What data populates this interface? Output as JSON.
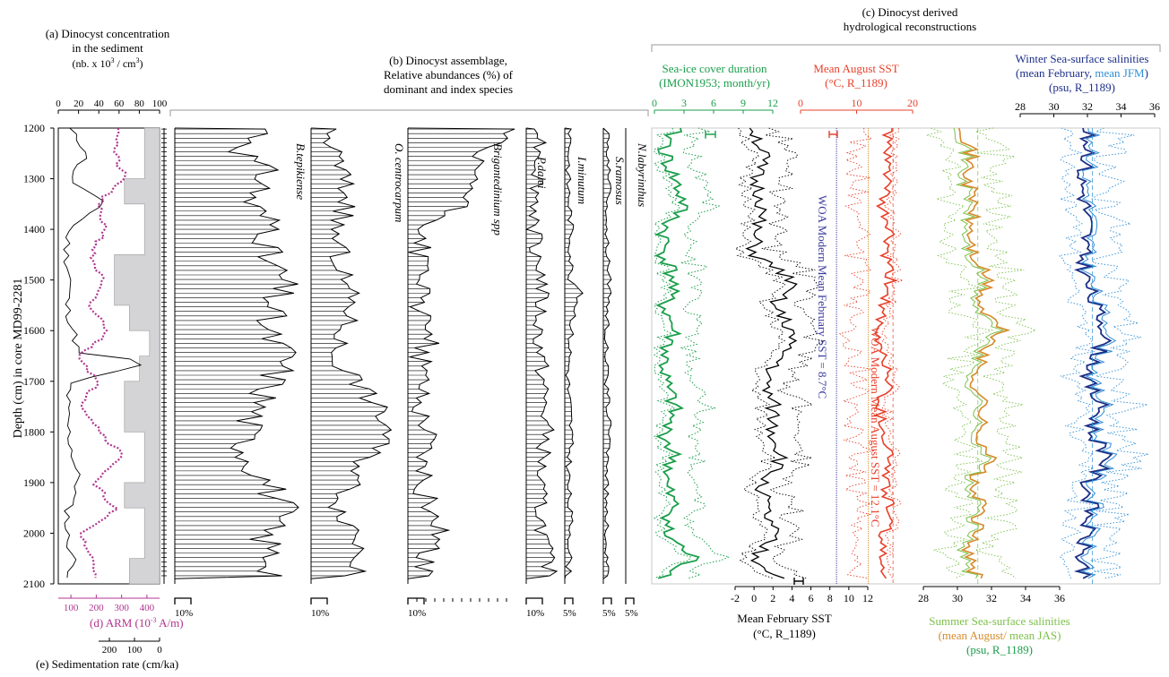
{
  "panels": {
    "a_title": [
      "(a) Dinocyst concentration",
      "in the sediment",
      "(nb. x 10",
      "3",
      " / cm",
      "3",
      ")"
    ],
    "b_title": [
      "(b) Dinocyst assemblage,",
      "Relative abundances (%) of",
      "dominant and index species"
    ],
    "c_title": [
      "(c) Dinocyst derived",
      "hydrological reconstructions"
    ],
    "d_label": "(d) ARM (10",
    "d_label_sup": "-3",
    "d_label_end": " A/m)",
    "e_label": "(e) Sedimentation rate (cm/ka)",
    "y_label": "Depth (cm) in core MD99-2281",
    "seaice_title": [
      "Sea-ice cover duration",
      "(IMON1953; month/yr)"
    ],
    "aug_title": [
      "Mean August SST",
      "(°C, R_1189)"
    ],
    "winter_title": [
      "Winter Sea-surface salinities",
      "(mean February, ",
      "mean JFM",
      ")",
      "(psu, R_1189)"
    ],
    "feb_title": [
      "Mean February SST",
      "(°C, R_1189)"
    ],
    "summer_title": [
      "Summer Sea-surface salinities",
      "(mean August/",
      " mean JAS)",
      "(psu, R_1189)"
    ],
    "woa_feb": "WOA Modern Mean February SST = 8.7°C",
    "woa_aug": "WOA Modern Mean August SST = 12.1°C"
  },
  "colors": {
    "green": "#1b9e4b",
    "lightgreen": "#7cc04a",
    "red": "#e8402a",
    "orange": "#d68a2a",
    "darkblue": "#1c2f86",
    "lightblue": "#2f8fd6",
    "magenta": "#b0348f",
    "purple": "#3a3aa0",
    "gray": "#d4d4d6"
  },
  "species": [
    "B.tepikiense",
    "O. centrocarpum",
    "Brigantedinium spp",
    "P.dalei",
    "I.minutum",
    "S.ramosus",
    "N.labyrinthus"
  ],
  "scale_labels": [
    "10%",
    "10%",
    "10%",
    "10%",
    "5%",
    "5%",
    "5%"
  ],
  "chart_data": {
    "type": "line",
    "depth_axis": {
      "label": "Depth (cm) in core MD99-2281",
      "range": [
        1200,
        2100
      ],
      "ticks": [
        "1200",
        "1300",
        "1400",
        "1500",
        "1600",
        "1700",
        "1800",
        "1900",
        "2000",
        "2100"
      ]
    },
    "axes": {
      "concentration": {
        "ticks": [
          "0",
          "20",
          "40",
          "60",
          "80",
          "100"
        ],
        "range": [
          0,
          100
        ]
      },
      "arm": {
        "ticks": [
          "100",
          "200",
          "300",
          "400"
        ],
        "range": [
          50,
          450
        ]
      },
      "sed_rate": {
        "ticks": [
          "200",
          "100",
          "0"
        ],
        "range": [
          250,
          0
        ]
      },
      "seaice": {
        "ticks": [
          "0",
          "3",
          "6",
          "9",
          "12"
        ],
        "range": [
          0,
          12
        ]
      },
      "aug_sst": {
        "ticks": [
          "0",
          "10",
          "20"
        ],
        "range": [
          0,
          20
        ]
      },
      "feb_sst": {
        "ticks": [
          "-2",
          "0",
          "2",
          "4",
          "6",
          "8",
          "10",
          "12"
        ],
        "range": [
          -2,
          12
        ]
      },
      "summer_sss": {
        "ticks": [
          "28",
          "30",
          "32",
          "34",
          "36"
        ],
        "range": [
          28,
          36
        ]
      },
      "winter_sss": {
        "ticks": [
          "28",
          "30",
          "32",
          "34",
          "36"
        ],
        "range": [
          28,
          36
        ]
      }
    },
    "series": [
      {
        "name": "B.tepikiense",
        "depth": [
          1200,
          1250,
          1300,
          1350,
          1400,
          1450,
          1500,
          1550,
          1600,
          1650,
          1700,
          1750,
          1800,
          1850,
          1900,
          1950,
          2000,
          2050,
          2090
        ],
        "values": [
          40,
          30,
          40,
          32,
          44,
          38,
          46,
          42,
          38,
          48,
          42,
          36,
          30,
          32,
          40,
          46,
          38,
          42,
          44
        ]
      },
      {
        "name": "O. centrocarpum",
        "depth": [
          1200,
          1250,
          1300,
          1350,
          1400,
          1450,
          1500,
          1550,
          1600,
          1650,
          1700,
          1750,
          1800,
          1850,
          1900,
          1950,
          2000,
          2050,
          2090
        ],
        "values": [
          6,
          10,
          14,
          16,
          10,
          12,
          14,
          18,
          14,
          10,
          20,
          28,
          34,
          24,
          18,
          12,
          20,
          22,
          16
        ]
      },
      {
        "name": "Brigantedinium spp",
        "depth": [
          1200,
          1250,
          1300,
          1350,
          1400,
          1450,
          1500,
          1550,
          1600,
          1650,
          1700,
          1750,
          1800,
          1850,
          1900,
          1950,
          2000,
          2050,
          2090
        ],
        "values": [
          38,
          22,
          24,
          18,
          6,
          4,
          6,
          2,
          10,
          4,
          6,
          4,
          8,
          6,
          4,
          8,
          12,
          6,
          4
        ]
      },
      {
        "name": "P.dalei",
        "depth": [
          1200,
          1300,
          1400,
          1500,
          1600,
          1700,
          1800,
          1900,
          2000,
          2090
        ],
        "values": [
          4,
          3,
          2,
          4,
          3,
          4,
          5,
          3,
          4,
          6
        ]
      },
      {
        "name": "I.minutum",
        "depth": [
          1200,
          1300,
          1400,
          1500,
          1520,
          1600,
          1700,
          1800,
          1900,
          2000,
          2090
        ],
        "values": [
          2,
          1,
          2,
          2,
          5,
          2,
          1,
          2,
          1,
          2,
          1
        ]
      },
      {
        "name": "S.ramosus",
        "depth": [
          1200,
          1300,
          1400,
          1500,
          1600,
          1700,
          1800,
          1900,
          2000,
          2090
        ],
        "values": [
          1,
          2,
          1,
          2,
          1,
          1,
          2,
          1,
          1,
          1
        ]
      },
      {
        "name": "Sea-ice cover duration",
        "depth": [
          1200,
          1250,
          1300,
          1350,
          1400,
          1450,
          1500,
          1550,
          1600,
          1650,
          1700,
          1750,
          1800,
          1850,
          1900,
          1950,
          2000,
          2050,
          2090
        ],
        "values": [
          2,
          1,
          2,
          3,
          1,
          1,
          2,
          1,
          2,
          1,
          1,
          2,
          1,
          2,
          1,
          2,
          1,
          4,
          1
        ]
      },
      {
        "name": "Mean February SST",
        "depth": [
          1200,
          1250,
          1300,
          1350,
          1400,
          1450,
          1500,
          1550,
          1600,
          1650,
          1700,
          1750,
          1800,
          1850,
          1900,
          1950,
          2000,
          2050,
          2090
        ],
        "values": [
          0,
          1,
          0,
          1,
          0,
          0,
          4,
          2,
          4,
          3,
          1,
          2,
          2,
          3,
          1,
          1,
          2,
          0,
          3
        ]
      },
      {
        "name": "Mean August SST",
        "depth": [
          1200,
          1250,
          1300,
          1350,
          1400,
          1450,
          1500,
          1550,
          1600,
          1650,
          1700,
          1750,
          1800,
          1850,
          1900,
          1950,
          2000,
          2050,
          2090
        ],
        "values": [
          16,
          15,
          16,
          14,
          16,
          15,
          16,
          15,
          13,
          15,
          16,
          14,
          15,
          16,
          15,
          16,
          15,
          14,
          16
        ]
      },
      {
        "name": "Summer SSS",
        "depth": [
          1200,
          1250,
          1300,
          1350,
          1400,
          1450,
          1500,
          1550,
          1600,
          1650,
          1700,
          1750,
          1800,
          1850,
          1900,
          1950,
          2000,
          2050,
          2090
        ],
        "values": [
          30.5,
          30.8,
          30.6,
          31.0,
          30.7,
          30.9,
          31.8,
          31.2,
          32.6,
          31.4,
          31.0,
          31.6,
          31.2,
          32.0,
          30.8,
          31.4,
          31.0,
          30.6,
          31.2
        ]
      },
      {
        "name": "Winter SSS",
        "depth": [
          1200,
          1250,
          1300,
          1350,
          1400,
          1450,
          1500,
          1550,
          1600,
          1650,
          1700,
          1750,
          1800,
          1850,
          1900,
          1950,
          2000,
          2050,
          2090
        ],
        "values": [
          31.8,
          32.2,
          31.6,
          31.9,
          32.0,
          31.7,
          31.9,
          32.4,
          33.2,
          32.6,
          32.0,
          32.8,
          32.2,
          33.4,
          32.0,
          32.2,
          31.9,
          31.6,
          32.0
        ]
      },
      {
        "name": "ARM",
        "depth": [
          1200,
          1250,
          1300,
          1350,
          1400,
          1450,
          1500,
          1550,
          1600,
          1650,
          1700,
          1750,
          1800,
          1850,
          1900,
          1950,
          2000,
          2050,
          2090
        ],
        "values": [
          300,
          270,
          310,
          200,
          240,
          180,
          220,
          170,
          250,
          140,
          200,
          150,
          220,
          310,
          180,
          280,
          140,
          180,
          210
        ]
      },
      {
        "name": "Concentration",
        "depth": [
          1200,
          1250,
          1300,
          1350,
          1400,
          1450,
          1500,
          1550,
          1600,
          1650,
          1660,
          1700,
          1750,
          1800,
          1850,
          1900,
          1950,
          2000,
          2050,
          2090
        ],
        "values": [
          10,
          30,
          10,
          45,
          10,
          8,
          12,
          8,
          15,
          20,
          100,
          12,
          8,
          10,
          15,
          20,
          10,
          8,
          15,
          12
        ]
      },
      {
        "name": "Sedimentation rate",
        "depth": [
          1200,
          1300,
          1350,
          1450,
          1550,
          1600,
          1650,
          1700,
          1800,
          1900,
          1950,
          2050,
          2100
        ],
        "values": [
          60,
          140,
          60,
          180,
          120,
          40,
          80,
          140,
          60,
          140,
          60,
          120,
          60
        ]
      }
    ],
    "woa_feb_sst": 8.7,
    "woa_aug_sst": 12.1
  }
}
